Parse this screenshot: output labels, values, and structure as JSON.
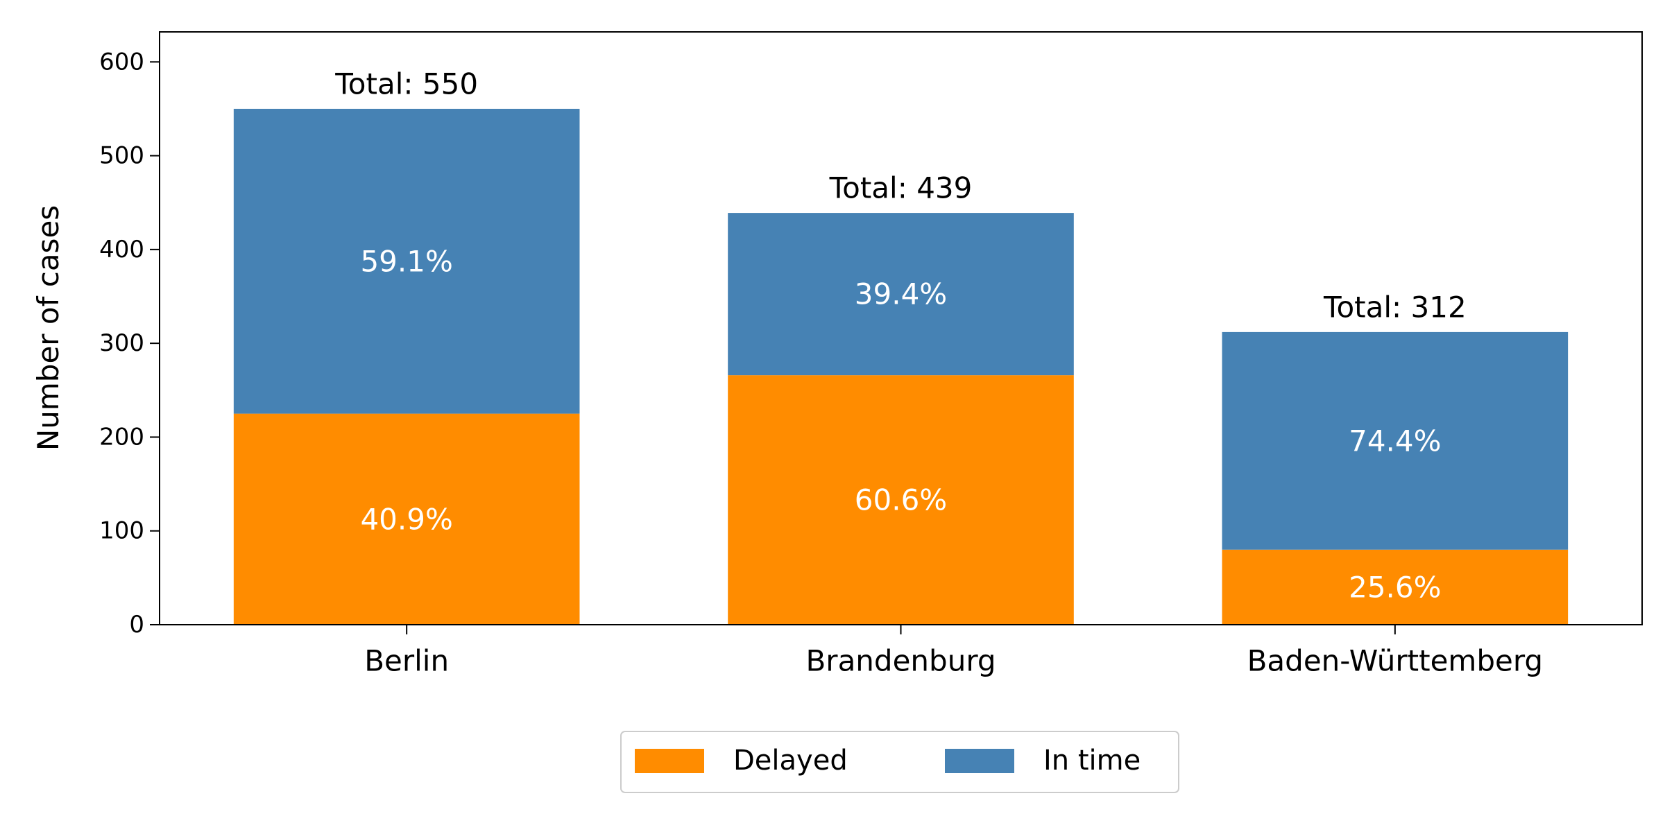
{
  "chart_data": {
    "type": "bar",
    "stacked": true,
    "categories": [
      "Berlin",
      "Brandenburg",
      "Baden-Württemberg"
    ],
    "series": [
      {
        "name": "Delayed",
        "color": "#ff8c00",
        "values": [
          225,
          266,
          80
        ],
        "labels": [
          "40.9%",
          "60.6%",
          "25.6%"
        ]
      },
      {
        "name": "In time",
        "color": "#4682b4",
        "values": [
          325,
          173,
          232
        ],
        "labels": [
          "59.1%",
          "39.4%",
          "74.4%"
        ]
      }
    ],
    "totals": [
      "Total: 550",
      "Total: 439",
      "Total: 312"
    ],
    "total_values": [
      550,
      439,
      312
    ],
    "title": "",
    "xlabel": "",
    "ylabel": "Number of cases",
    "ylim": [
      0,
      632
    ],
    "yticks": [
      0,
      100,
      200,
      300,
      400,
      500,
      600
    ],
    "grid": false,
    "legend_position": "bottom-center"
  }
}
